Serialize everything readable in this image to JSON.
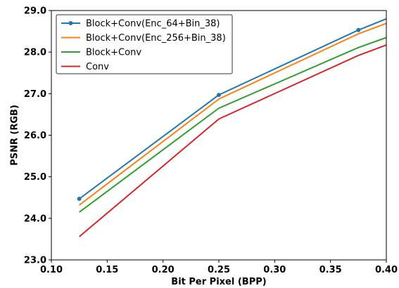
{
  "chart_data": {
    "type": "line",
    "title": "",
    "xlabel": "Bit Per Pixel (BPP)",
    "ylabel": "PSNR (RGB)",
    "xlim": [
      0.1,
      0.4
    ],
    "ylim": [
      23.0,
      29.0
    ],
    "xticks": [
      0.1,
      0.15,
      0.2,
      0.25,
      0.3,
      0.35,
      0.4
    ],
    "xtick_labels": [
      "0.10",
      "0.15",
      "0.20",
      "0.25",
      "0.30",
      "0.35",
      "0.40"
    ],
    "yticks": [
      23.0,
      24.0,
      25.0,
      26.0,
      27.0,
      28.0,
      29.0
    ],
    "ytick_labels": [
      "23.0",
      "24.0",
      "25.0",
      "26.0",
      "27.0",
      "28.0",
      "29.0"
    ],
    "grid": false,
    "legend_placement": "top-left",
    "series": [
      {
        "name": "Block+Conv(Enc_64+Bin_38)",
        "color": "#1f77b4",
        "markers": true,
        "x": [
          0.125,
          0.25,
          0.375,
          0.4
        ],
        "y": [
          24.47,
          26.97,
          28.53,
          28.8
        ]
      },
      {
        "name": "Block+Conv(Enc_256+Bin_38)",
        "color": "#ff7f0e",
        "markers": false,
        "x": [
          0.125,
          0.25,
          0.375,
          0.4
        ],
        "y": [
          24.32,
          26.87,
          28.44,
          28.69
        ]
      },
      {
        "name": "Block+Conv",
        "color": "#2ca02c",
        "markers": false,
        "x": [
          0.125,
          0.25,
          0.375,
          0.4
        ],
        "y": [
          24.15,
          26.65,
          28.11,
          28.35
        ]
      },
      {
        "name": "Conv",
        "color": "#d62728",
        "markers": false,
        "x": [
          0.125,
          0.25,
          0.375,
          0.4
        ],
        "y": [
          23.56,
          26.39,
          27.92,
          28.17
        ]
      }
    ]
  }
}
